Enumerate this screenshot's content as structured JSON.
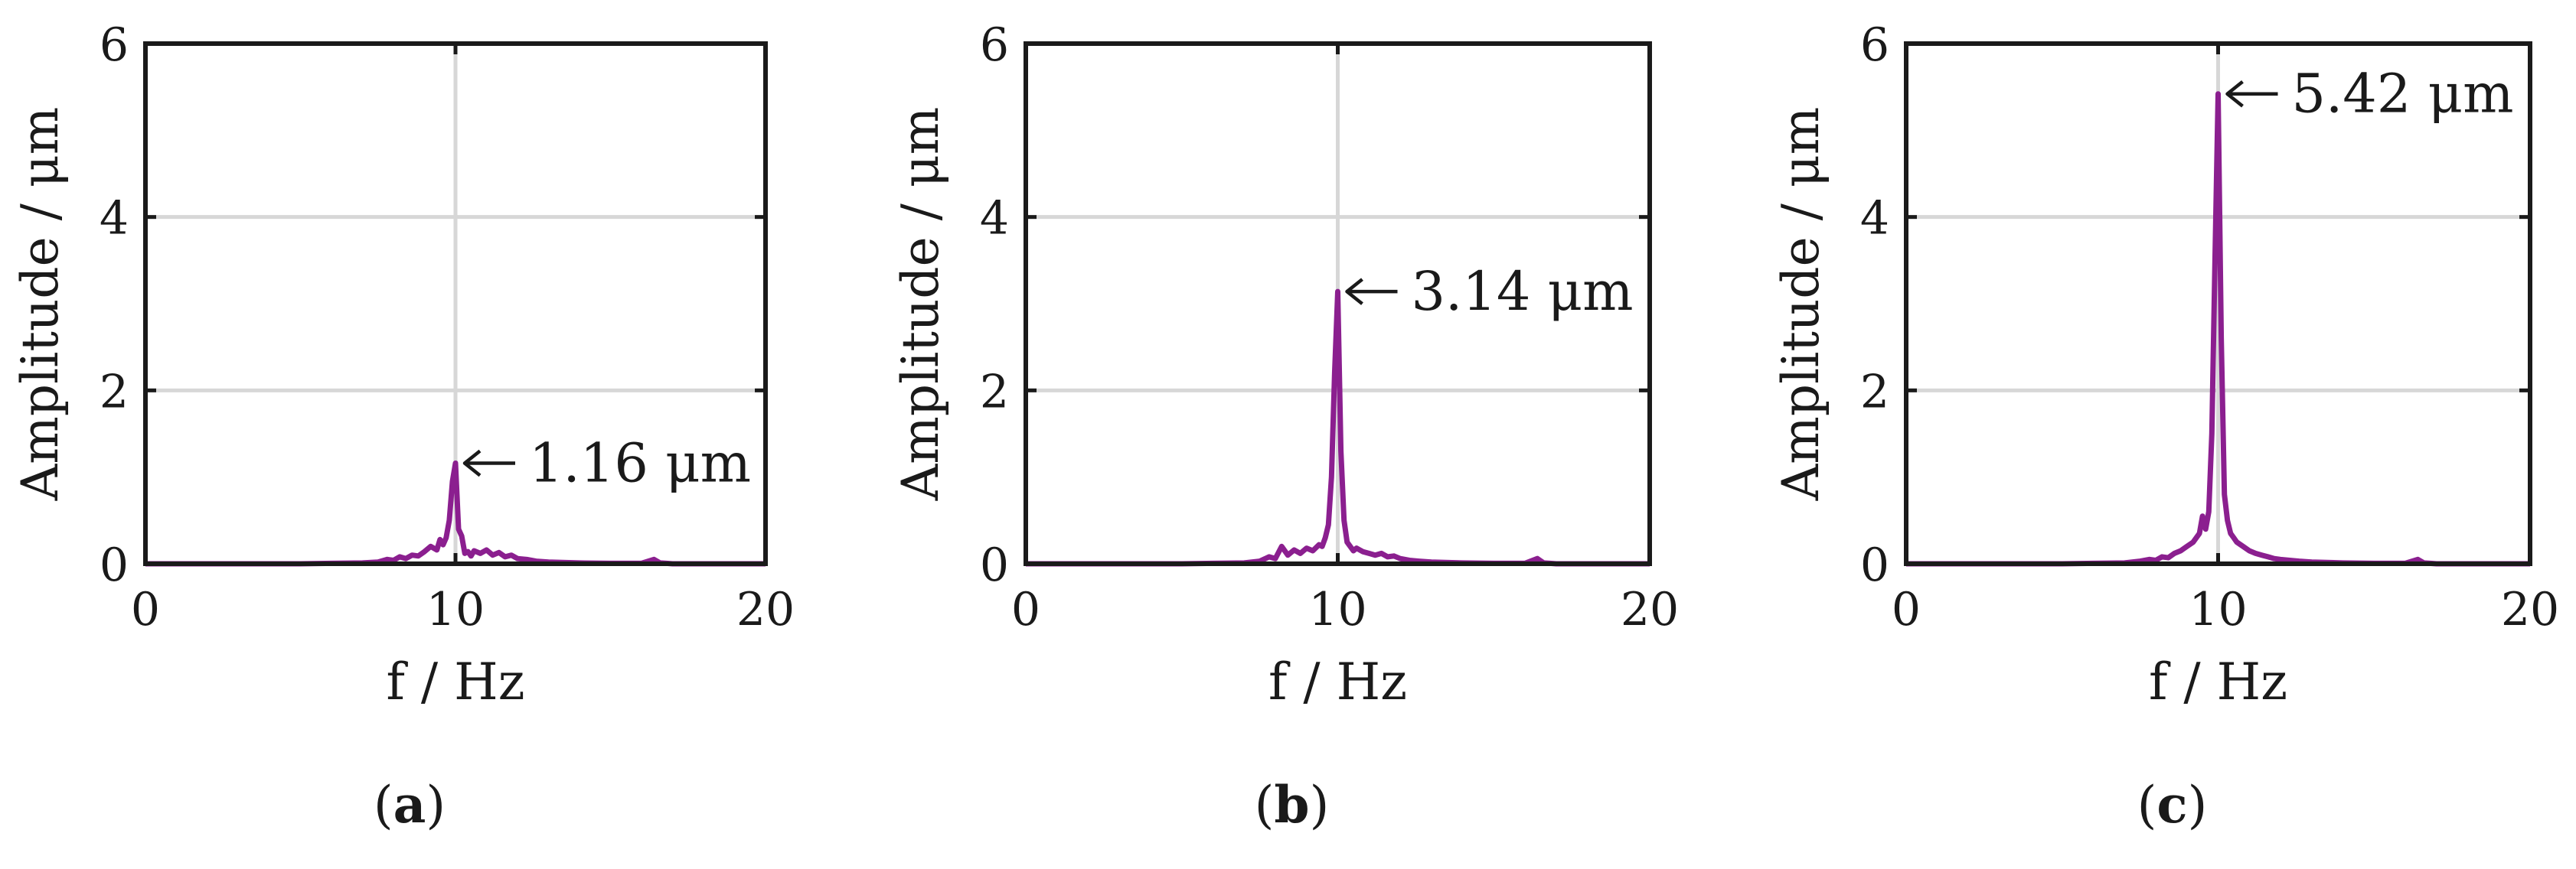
{
  "figure": {
    "panels": [
      {
        "label_open": "(",
        "label_letter": "a",
        "label_close": ")"
      },
      {
        "label_open": "(",
        "label_letter": "b",
        "label_close": ")"
      },
      {
        "label_open": "(",
        "label_letter": "c",
        "label_close": ")"
      }
    ]
  },
  "colors": {
    "series": "#8b1f8f",
    "grid": "#d7d7d7",
    "axes": "#1a1a1a"
  },
  "chart_data": [
    {
      "type": "line",
      "title": "",
      "xlabel": "f / Hz",
      "ylabel": "Amplitude / μm",
      "xlim": [
        0,
        20
      ],
      "ylim": [
        0,
        6
      ],
      "xticks": [
        0,
        10,
        20
      ],
      "yticks": [
        0,
        2,
        4,
        6
      ],
      "grid": true,
      "series": [
        {
          "x": [
            0,
            1,
            2,
            3,
            4,
            5,
            6,
            7,
            7.5,
            7.8,
            8.0,
            8.2,
            8.4,
            8.6,
            8.8,
            9.0,
            9.2,
            9.4,
            9.5,
            9.6,
            9.7,
            9.8,
            9.9,
            10.0,
            10.1,
            10.2,
            10.3,
            10.4,
            10.5,
            10.6,
            10.8,
            11.0,
            11.2,
            11.4,
            11.6,
            11.8,
            12.0,
            12.3,
            12.6,
            13,
            14,
            15,
            16,
            16.4,
            16.6,
            16.8,
            17,
            18,
            19,
            20
          ],
          "values": [
            0,
            0,
            0,
            0,
            0,
            0,
            0.005,
            0.01,
            0.02,
            0.05,
            0.04,
            0.08,
            0.06,
            0.1,
            0.09,
            0.14,
            0.2,
            0.16,
            0.28,
            0.22,
            0.3,
            0.5,
            0.95,
            1.16,
            0.4,
            0.32,
            0.12,
            0.14,
            0.09,
            0.15,
            0.12,
            0.16,
            0.1,
            0.13,
            0.08,
            0.1,
            0.06,
            0.05,
            0.03,
            0.02,
            0.01,
            0.005,
            0.005,
            0.05,
            0.01,
            0.005,
            0,
            0,
            0,
            0
          ]
        }
      ],
      "annotations": [
        {
          "text": "1.16 μm",
          "x": 10.0,
          "y": 1.16
        }
      ]
    },
    {
      "type": "line",
      "title": "",
      "xlabel": "f / Hz",
      "ylabel": "Amplitude / μm",
      "xlim": [
        0,
        20
      ],
      "ylim": [
        0,
        6
      ],
      "xticks": [
        0,
        10,
        20
      ],
      "yticks": [
        0,
        2,
        4,
        6
      ],
      "grid": true,
      "series": [
        {
          "x": [
            0,
            1,
            2,
            3,
            4,
            5,
            6,
            7,
            7.5,
            7.8,
            8.0,
            8.2,
            8.4,
            8.6,
            8.8,
            9.0,
            9.2,
            9.4,
            9.5,
            9.6,
            9.7,
            9.8,
            9.9,
            10.0,
            10.1,
            10.2,
            10.3,
            10.4,
            10.5,
            10.6,
            10.8,
            11.0,
            11.2,
            11.4,
            11.6,
            11.8,
            12.0,
            12.3,
            12.6,
            13,
            14,
            15,
            16,
            16.4,
            16.6,
            16.8,
            17,
            18,
            19,
            20
          ],
          "values": [
            0,
            0,
            0,
            0,
            0,
            0,
            0.005,
            0.01,
            0.03,
            0.08,
            0.06,
            0.2,
            0.1,
            0.16,
            0.12,
            0.18,
            0.15,
            0.22,
            0.2,
            0.3,
            0.45,
            1.0,
            2.2,
            3.14,
            1.3,
            0.5,
            0.25,
            0.2,
            0.15,
            0.18,
            0.14,
            0.12,
            0.1,
            0.12,
            0.08,
            0.09,
            0.06,
            0.04,
            0.03,
            0.02,
            0.01,
            0.005,
            0.005,
            0.06,
            0.01,
            0.005,
            0,
            0,
            0,
            0
          ]
        }
      ],
      "annotations": [
        {
          "text": "3.14 μm",
          "x": 10.0,
          "y": 3.14
        }
      ]
    },
    {
      "type": "line",
      "title": "",
      "xlabel": "f / Hz",
      "ylabel": "Amplitude / μm",
      "xlim": [
        0,
        20
      ],
      "ylim": [
        0,
        6
      ],
      "xticks": [
        0,
        10,
        20
      ],
      "yticks": [
        0,
        2,
        4,
        6
      ],
      "grid": true,
      "series": [
        {
          "x": [
            0,
            1,
            2,
            3,
            4,
            5,
            6,
            7,
            7.5,
            7.8,
            8.0,
            8.2,
            8.4,
            8.6,
            8.8,
            9.0,
            9.2,
            9.4,
            9.5,
            9.6,
            9.7,
            9.8,
            9.9,
            10.0,
            10.1,
            10.2,
            10.3,
            10.4,
            10.5,
            10.6,
            10.8,
            11.0,
            11.2,
            11.4,
            11.6,
            11.8,
            12.0,
            12.3,
            12.6,
            13,
            14,
            15,
            16,
            16.4,
            16.6,
            16.8,
            17,
            18,
            19,
            20
          ],
          "values": [
            0,
            0,
            0,
            0,
            0,
            0,
            0.005,
            0.01,
            0.03,
            0.05,
            0.04,
            0.08,
            0.07,
            0.12,
            0.15,
            0.2,
            0.25,
            0.35,
            0.55,
            0.4,
            0.6,
            1.5,
            3.5,
            5.42,
            2.6,
            0.8,
            0.5,
            0.35,
            0.3,
            0.25,
            0.2,
            0.15,
            0.12,
            0.1,
            0.08,
            0.06,
            0.05,
            0.04,
            0.03,
            0.02,
            0.01,
            0.005,
            0.005,
            0.05,
            0.01,
            0.005,
            0,
            0,
            0,
            0
          ]
        }
      ],
      "annotations": [
        {
          "text": "5.42 μm",
          "x": 10.0,
          "y": 5.42
        }
      ]
    }
  ]
}
